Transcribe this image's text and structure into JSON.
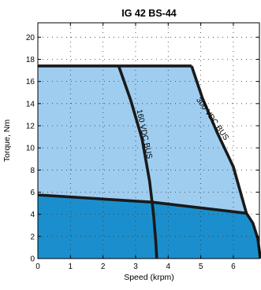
{
  "chart_data": {
    "type": "area",
    "title": "IG 42 BS-44",
    "xlabel": "Speed (krpm)",
    "ylabel": "Torque, Nm",
    "xlim": [
      0,
      6.8
    ],
    "ylim": [
      0,
      21.3
    ],
    "xticks": [
      "0",
      "1",
      "2",
      "3",
      "4",
      "5",
      "6"
    ],
    "yticks": [
      "0",
      "2",
      "4",
      "6",
      "8",
      "10",
      "12",
      "14",
      "16",
      "18",
      "20"
    ],
    "grid": "dotted",
    "colors": {
      "dark_region": "#1b8fcd",
      "light_region": "#9fcdef",
      "curve": "#1a1a1a"
    },
    "regions": [
      {
        "shade": "dark",
        "points": [
          [
            0,
            0
          ],
          [
            0,
            5.75
          ],
          [
            3.5,
            5.1
          ],
          [
            6.4,
            4.1
          ],
          [
            6.6,
            3.2
          ],
          [
            6.75,
            1.8
          ],
          [
            6.83,
            0
          ]
        ]
      },
      {
        "shade": "light",
        "points": [
          [
            0,
            5.75
          ],
          [
            0,
            17.4
          ],
          [
            4.72,
            17.4
          ],
          [
            5.05,
            14.5
          ],
          [
            5.5,
            11.4
          ],
          [
            6.0,
            8.3
          ],
          [
            6.4,
            4.1
          ],
          [
            3.5,
            5.1
          ]
        ]
      }
    ],
    "series": [
      {
        "points": [
          [
            0,
            17.4
          ],
          [
            4.72,
            17.4
          ]
        ]
      },
      {
        "points": [
          [
            2.48,
            17.4
          ],
          [
            2.85,
            14.3
          ],
          [
            3.2,
            10.8
          ],
          [
            3.43,
            7.0
          ],
          [
            3.55,
            4.0
          ],
          [
            3.62,
            1.5
          ],
          [
            3.65,
            0
          ]
        ]
      },
      {
        "points": [
          [
            4.72,
            17.4
          ],
          [
            5.05,
            14.5
          ],
          [
            5.5,
            11.4
          ],
          [
            6.0,
            8.3
          ],
          [
            6.4,
            4.1
          ],
          [
            6.6,
            3.2
          ],
          [
            6.75,
            1.8
          ],
          [
            6.83,
            0
          ]
        ]
      },
      {
        "points": [
          [
            0,
            5.75
          ],
          [
            3.5,
            5.1
          ],
          [
            6.4,
            4.1
          ]
        ]
      }
    ],
    "annotations": [
      {
        "text": "160 VDC BUS",
        "x": 3.2,
        "y": 11.2,
        "angle": 78
      },
      {
        "text": "300 VDC BUS",
        "x": 5.3,
        "y": 12.5,
        "angle": 55
      }
    ]
  }
}
